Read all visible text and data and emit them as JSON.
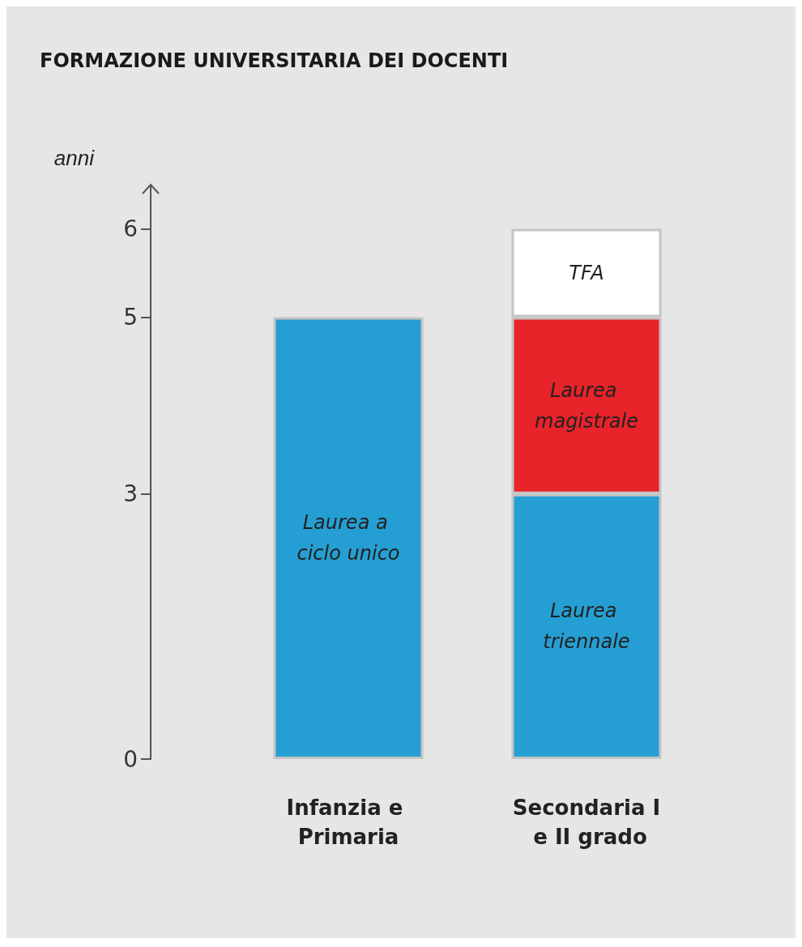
{
  "chart_data": {
    "type": "bar",
    "title": "FORMAZIONE UNIVERSITARIA DEI DOCENTI",
    "ylabel": "anni",
    "categories": [
      "Infanzia e Primaria",
      "Secondaria I e II grado"
    ],
    "stacked": true,
    "series": [
      {
        "name": "Laurea a ciclo unico",
        "color": "#259fd3",
        "values": [
          5,
          null
        ]
      },
      {
        "name": "Laurea triennale",
        "color": "#259fd3",
        "values": [
          null,
          3
        ]
      },
      {
        "name": "Laurea magistrale",
        "color": "#e8232a",
        "values": [
          null,
          2
        ]
      },
      {
        "name": "TFA",
        "color": "#ffffff",
        "values": [
          null,
          1
        ]
      }
    ],
    "ylim": [
      0,
      6.5
    ],
    "yticks": [
      0,
      3,
      5,
      6
    ],
    "grid": false,
    "legend": false
  }
}
